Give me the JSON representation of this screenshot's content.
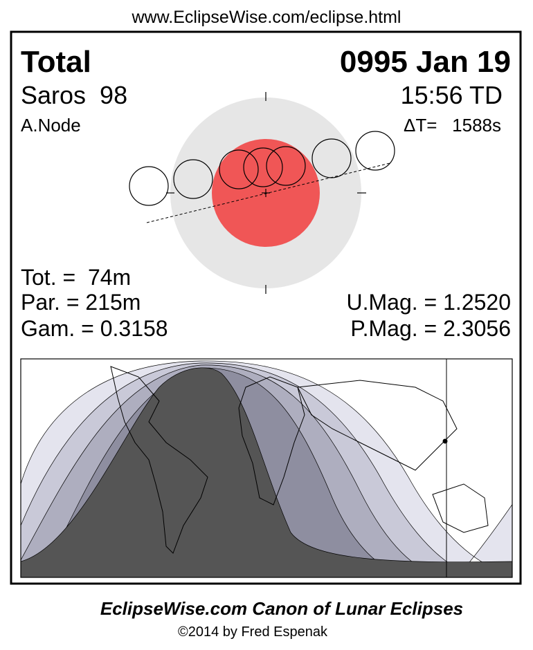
{
  "header": {
    "url": "www.EclipseWise.com/eclipse.html"
  },
  "eclipse": {
    "type": "Total",
    "date": "0995 Jan 19",
    "saros": "Saros  98",
    "time": "15:56 TD",
    "node": "A.Node",
    "delta_t": "ΔT=   1588s"
  },
  "stats": {
    "total_duration": "Tot. =  74m",
    "partial_duration": "Par. = 215m",
    "gamma": "Gam. = 0.3158",
    "umbral_magnitude": "U.Mag. = 1.2520",
    "penumbral_magnitude": "P.Mag. = 2.3056"
  },
  "footer": {
    "title": "EclipseWise.com Canon of Lunar Eclipses",
    "credit": "©2014 by Fred Espenak"
  }
}
